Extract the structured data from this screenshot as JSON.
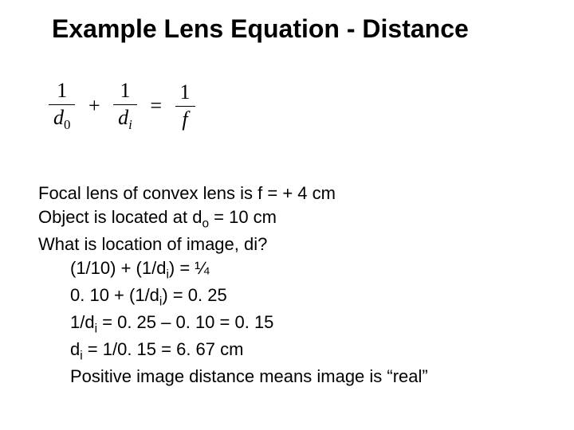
{
  "title": "Example Lens Equation - Distance",
  "equation": {
    "num1": "1",
    "den1_var": "d",
    "den1_sub": "0",
    "op1": "+",
    "num2": "1",
    "den2_var": "d",
    "den2_sub": "i",
    "op2": "=",
    "num3": "1",
    "den3_var": "f"
  },
  "lines": {
    "l1a": "Focal lens of convex lens is f = + 4 cm",
    "l2a": "Object is located at d",
    "l2sub": "o",
    "l2b": " = 10 cm",
    "l3": "What is location of image, di?",
    "l4a": "(1/10) + (1/d",
    "l4sub": "i",
    "l4b": ") = ¼",
    "l5a": "0. 10 + (1/d",
    "l5sub": "i",
    "l5b": ") = 0. 25",
    "l6a": "1/d",
    "l6sub": "i",
    "l6b": " = 0. 25 – 0. 10 = 0. 15",
    "l7a": "d",
    "l7sub": "i",
    "l7b": " = 1/0. 15 = 6. 67 cm",
    "l8": "Positive image distance means image is “real”"
  },
  "colors": {
    "background": "#ffffff",
    "text": "#000000"
  },
  "typography": {
    "title_fontsize": 32,
    "body_fontsize": 22,
    "equation_fontsize": 26,
    "title_weight": "bold",
    "font_family_title": "Arial",
    "font_family_equation": "Times New Roman"
  }
}
